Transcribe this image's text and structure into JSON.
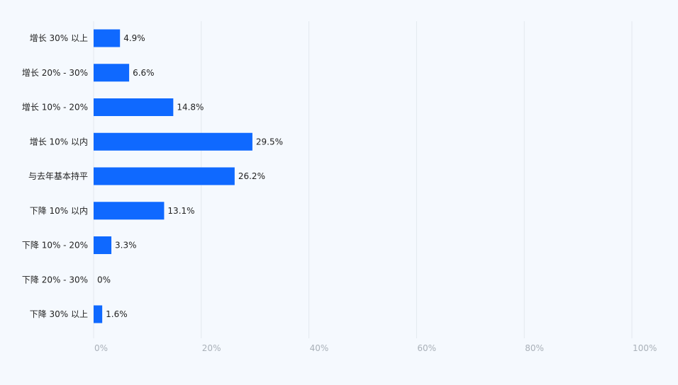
{
  "chart_data": {
    "type": "bar",
    "orientation": "horizontal",
    "categories": [
      "增长 30% 以上",
      "增长 20% - 30%",
      "增长 10% - 20%",
      "增长 10% 以内",
      "与去年基本持平",
      "下降 10% 以内",
      "下降 10% - 20%",
      "下降 20% - 30%",
      "下降 30% 以上"
    ],
    "values": [
      4.9,
      6.6,
      14.8,
      29.5,
      26.2,
      13.1,
      3.3,
      0,
      1.6
    ],
    "value_labels": [
      "4.9%",
      "6.6%",
      "14.8%",
      "29.5%",
      "26.2%",
      "13.1%",
      "3.3%",
      "0%",
      "1.6%"
    ],
    "x_ticks": [
      "0%",
      "20%",
      "40%",
      "60%",
      "80%",
      "100%"
    ],
    "xlim": [
      0,
      100
    ],
    "grid": true,
    "colors": {
      "bar": "#0f69ff",
      "background": "#f5f9fe",
      "grid": "#e3e8ee",
      "category_text": "#222222",
      "value_text": "#222222",
      "tick_text": "#a9b0b8"
    }
  }
}
